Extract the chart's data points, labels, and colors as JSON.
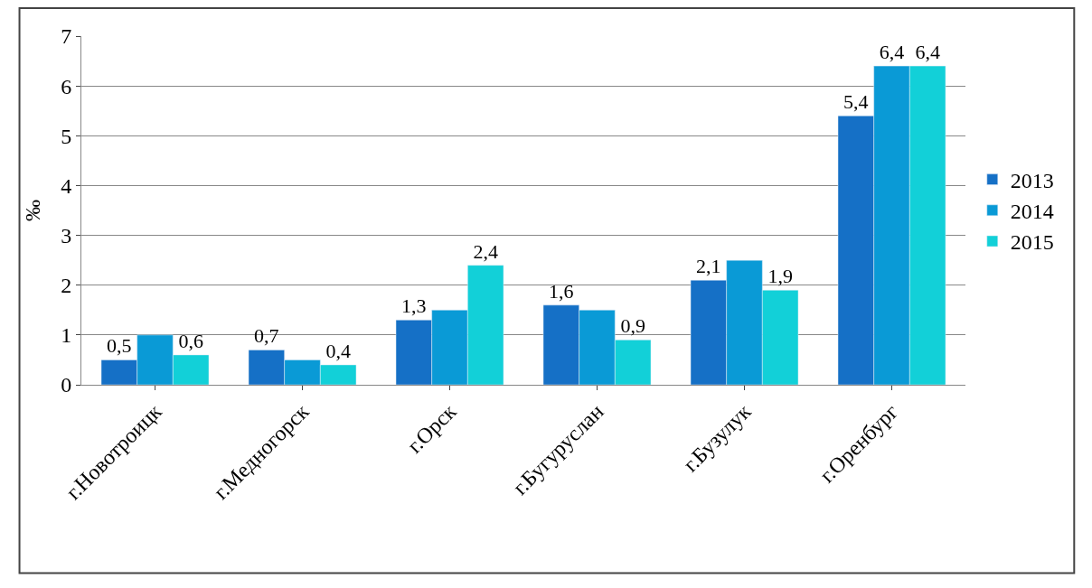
{
  "chart_data": {
    "type": "bar",
    "ylabel": "‰",
    "categories": [
      "г.Новотроицк",
      "г.Медногорск",
      "г.Орск",
      "г.Бугуруслан",
      "г.Бузулук",
      "г.Оренбург"
    ],
    "series": [
      {
        "name": "2013",
        "color": "#1570c6",
        "values": [
          0.5,
          0.7,
          1.3,
          1.6,
          2.1,
          5.4
        ],
        "value_labels": [
          "0,5",
          "0,7",
          "1,3",
          "1,6",
          "2,1",
          "5,4"
        ]
      },
      {
        "name": "2014",
        "color": "#0a9ad6",
        "values": [
          1.0,
          0.5,
          1.5,
          1.5,
          2.5,
          6.4
        ],
        "value_labels": [
          null,
          null,
          null,
          null,
          null,
          "6,4"
        ]
      },
      {
        "name": "2015",
        "color": "#12d0d8",
        "values": [
          0.6,
          0.4,
          2.4,
          0.9,
          1.9,
          6.4
        ],
        "value_labels": [
          "0,6",
          "0,4",
          "2,4",
          "0,9",
          "1,9",
          "6,4"
        ]
      }
    ],
    "ylim": [
      0,
      7
    ],
    "yticks": [
      0,
      1,
      2,
      3,
      4,
      5,
      6,
      7
    ],
    "grid": "y",
    "legend": "right"
  }
}
